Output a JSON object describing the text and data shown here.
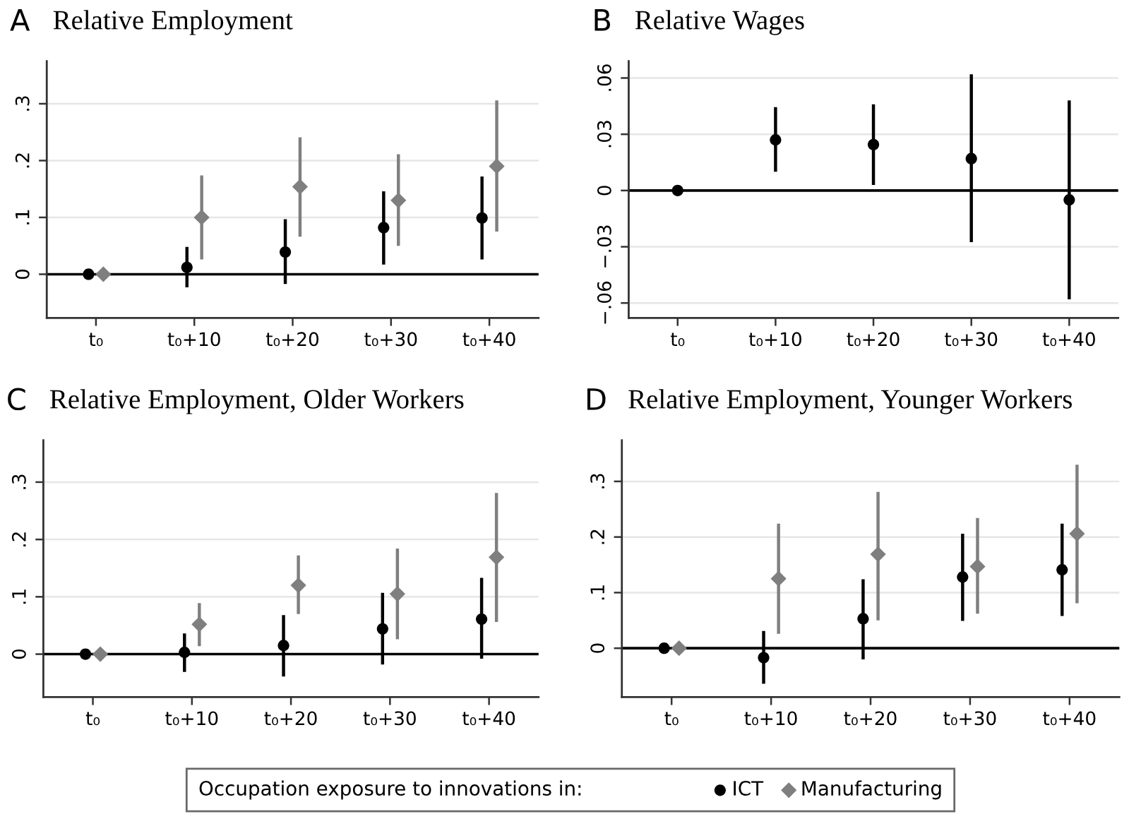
{
  "chart_data": [
    {
      "type": "scatter",
      "title": "Relative Employment",
      "annotations": [
        "A"
      ],
      "categories": [
        "t₀",
        "t₀+10",
        "t₀+20",
        "t₀+30",
        "t₀+40"
      ],
      "series": [
        {
          "name": "ICT",
          "color": "#000000",
          "marker": "circle",
          "values": [
            0,
            0.012,
            0.039,
            0.082,
            0.099
          ],
          "errors": [
            null,
            [
              -0.023,
              0.048
            ],
            [
              -0.017,
              0.097
            ],
            [
              0.017,
              0.146
            ],
            [
              0.026,
              0.172
            ]
          ]
        },
        {
          "name": "Manufacturing",
          "color": "#7f7f7f",
          "marker": "diamond",
          "values": [
            0,
            0.1,
            0.154,
            0.13,
            0.19
          ],
          "errors": [
            null,
            [
              0.026,
              0.174
            ],
            [
              0.066,
              0.241
            ],
            [
              0.05,
              0.211
            ],
            [
              0.075,
              0.306
            ]
          ]
        }
      ],
      "ylim": [
        -0.077,
        0.375
      ],
      "yticks": [
        0,
        {
          "value": 0.1,
          "label": ".1"
        },
        {
          "value": 0.2,
          "label": ".2"
        },
        {
          "value": 0.3,
          "label": ".3"
        }
      ],
      "grid": "y",
      "ref_lines": [
        {
          "axis": "y",
          "value": 0,
          "color": "#000000"
        }
      ],
      "legend": "bottom",
      "legend_title": "Occupation exposure to innovations in:"
    },
    {
      "type": "scatter",
      "title": "Relative Wages",
      "annotations": [
        "B"
      ],
      "categories": [
        "t₀",
        "t₀+10",
        "t₀+20",
        "t₀+30",
        "t₀+40"
      ],
      "series": [
        {
          "name": "ICT",
          "color": "#000000",
          "marker": "circle",
          "values": [
            0,
            0.027,
            0.0245,
            0.017,
            -0.005
          ],
          "errors": [
            null,
            [
              0.01,
              0.0445
            ],
            [
              0.003,
              0.046
            ],
            [
              -0.0275,
              0.062
            ],
            [
              -0.058,
              0.048
            ]
          ]
        }
      ],
      "ylim": [
        -0.068,
        0.069
      ],
      "yticks": [
        {
          "value": -0.06,
          "label": "−.06"
        },
        {
          "value": -0.03,
          "label": "−.03"
        },
        0,
        {
          "value": 0.03,
          "label": ".03"
        },
        {
          "value": 0.06,
          "label": ".06"
        }
      ],
      "grid": "y",
      "ref_lines": [
        {
          "axis": "y",
          "value": 0,
          "color": "#000000"
        }
      ]
    },
    {
      "type": "scatter",
      "title": "Relative Employment, Older Workers",
      "annotations": [
        "C"
      ],
      "categories": [
        "t₀",
        "t₀+10",
        "t₀+20",
        "t₀+30",
        "t₀+40"
      ],
      "series": [
        {
          "name": "ICT",
          "color": "#000000",
          "marker": "circle",
          "values": [
            0,
            0.003,
            0.015,
            0.044,
            0.061
          ],
          "errors": [
            null,
            [
              -0.031,
              0.036
            ],
            [
              -0.039,
              0.068
            ],
            [
              -0.018,
              0.107
            ],
            [
              -0.008,
              0.133
            ]
          ]
        },
        {
          "name": "Manufacturing",
          "color": "#7f7f7f",
          "marker": "diamond",
          "values": [
            0,
            0.052,
            0.12,
            0.105,
            0.169
          ],
          "errors": [
            null,
            [
              0.014,
              0.089
            ],
            [
              0.07,
              0.172
            ],
            [
              0.026,
              0.184
            ],
            [
              0.056,
              0.281
            ]
          ]
        }
      ],
      "ylim": [
        -0.075,
        0.373
      ],
      "yticks": [
        0,
        {
          "value": 0.1,
          "label": ".1"
        },
        {
          "value": 0.2,
          "label": ".2"
        },
        {
          "value": 0.3,
          "label": ".3"
        }
      ],
      "grid": "y",
      "ref_lines": [
        {
          "axis": "y",
          "value": 0,
          "color": "#000000"
        }
      ]
    },
    {
      "type": "scatter",
      "title": "Relative Employment, Younger Workers",
      "annotations": [
        "D"
      ],
      "categories": [
        "t₀",
        "t₀+10",
        "t₀+20",
        "t₀+30",
        "t₀+40"
      ],
      "series": [
        {
          "name": "ICT",
          "color": "#000000",
          "marker": "circle",
          "values": [
            0,
            -0.017,
            0.053,
            0.128,
            0.141
          ],
          "errors": [
            null,
            [
              -0.064,
              0.031
            ],
            [
              -0.02,
              0.124
            ],
            [
              0.049,
              0.206
            ],
            [
              0.058,
              0.224
            ]
          ]
        },
        {
          "name": "Manufacturing",
          "color": "#7f7f7f",
          "marker": "diamond",
          "values": [
            0,
            0.125,
            0.169,
            0.147,
            0.206
          ],
          "errors": [
            null,
            [
              0.026,
              0.224
            ],
            [
              0.05,
              0.281
            ],
            [
              0.062,
              0.234
            ],
            [
              0.081,
              0.33
            ]
          ]
        }
      ],
      "ylim": [
        -0.088,
        0.374
      ],
      "yticks": [
        0,
        {
          "value": 0.1,
          "label": ".1"
        },
        {
          "value": 0.2,
          "label": ".2"
        },
        {
          "value": 0.3,
          "label": ".3"
        }
      ],
      "grid": "y",
      "ref_lines": [
        {
          "axis": "y",
          "value": 0,
          "color": "#000000"
        }
      ]
    }
  ]
}
